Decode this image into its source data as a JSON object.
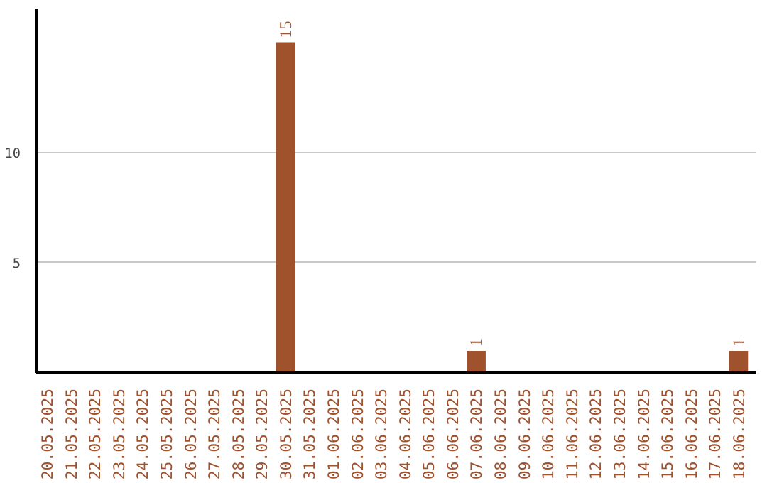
{
  "chart_data": {
    "type": "bar",
    "categories": [
      "20.05.2025",
      "21.05.2025",
      "22.05.2025",
      "23.05.2025",
      "24.05.2025",
      "25.05.2025",
      "26.05.2025",
      "27.05.2025",
      "28.05.2025",
      "29.05.2025",
      "30.05.2025",
      "31.05.2025",
      "01.06.2025",
      "02.06.2025",
      "03.06.2025",
      "04.06.2025",
      "05.06.2025",
      "06.06.2025",
      "07.06.2025",
      "08.06.2025",
      "09.06.2025",
      "10.06.2025",
      "11.06.2025",
      "12.06.2025",
      "13.06.2025",
      "14.06.2025",
      "15.06.2025",
      "16.06.2025",
      "17.06.2025",
      "18.06.2025"
    ],
    "values": [
      0,
      0,
      0,
      0,
      0,
      0,
      0,
      0,
      0,
      0,
      15,
      0,
      0,
      0,
      0,
      0,
      0,
      0,
      1,
      0,
      0,
      0,
      0,
      0,
      0,
      0,
      0,
      0,
      0,
      1
    ],
    "value_labels": [
      null,
      null,
      null,
      null,
      null,
      null,
      null,
      null,
      null,
      null,
      "15",
      null,
      null,
      null,
      null,
      null,
      null,
      null,
      "1",
      null,
      null,
      null,
      null,
      null,
      null,
      null,
      null,
      null,
      null,
      "1"
    ],
    "color": "#a0522d",
    "ylim": [
      0,
      16.5
    ],
    "yticks": [
      5,
      10
    ],
    "grid": "y"
  }
}
